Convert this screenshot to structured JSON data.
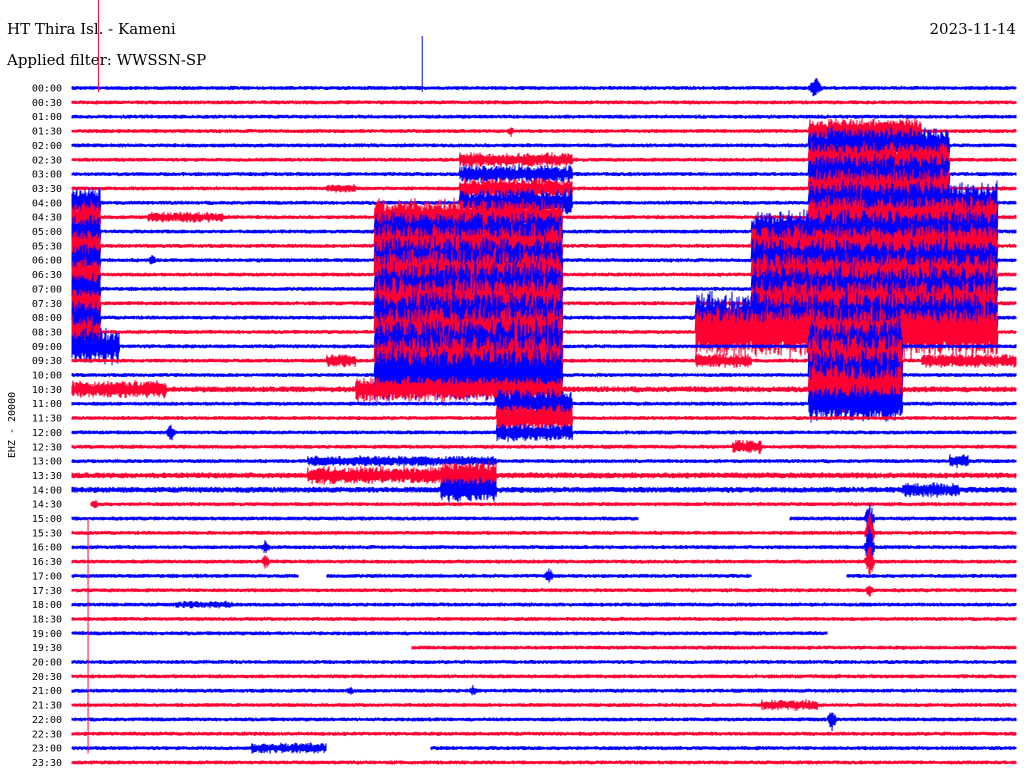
{
  "header": {
    "station": "HT Thira Isl. - Kameni",
    "date": "2023-11-14",
    "filter_prefix": "Applied filter:",
    "filter_name": "WWSSN-SP"
  },
  "chart_data": {
    "type": "line",
    "title": "HT Thira Isl. - Kameni",
    "subtitle": "Applied filter: WWSSN-SP",
    "ylabel": "EHZ - 20000",
    "xlabel": "",
    "row_colors": [
      "#0000ff",
      "#ff0033"
    ],
    "grid": false,
    "legend": "none",
    "rows": [
      {
        "label": "00:00",
        "base": 2,
        "bursts": [
          [
            0.78,
            0.015,
            12
          ]
        ]
      },
      {
        "label": "00:30",
        "base": 2,
        "bursts": []
      },
      {
        "label": "01:00",
        "base": 2,
        "bursts": []
      },
      {
        "label": "01:30",
        "base": 2,
        "bursts": [
          [
            0.46,
            0.01,
            6
          ],
          [
            0.78,
            0.12,
            14
          ],
          [
            0.86,
            0.02,
            14
          ]
        ]
      },
      {
        "label": "02:00",
        "base": 2,
        "bursts": [
          [
            0.78,
            0.15,
            20
          ]
        ]
      },
      {
        "label": "02:30",
        "base": 2,
        "bursts": [
          [
            0.41,
            0.12,
            8
          ],
          [
            0.78,
            0.15,
            20
          ]
        ]
      },
      {
        "label": "03:00",
        "base": 2,
        "bursts": [
          [
            0.41,
            0.12,
            10
          ],
          [
            0.78,
            0.15,
            22
          ]
        ]
      },
      {
        "label": "03:30",
        "base": 2,
        "bursts": [
          [
            0.41,
            0.12,
            12
          ],
          [
            0.27,
            0.03,
            5
          ],
          [
            0.78,
            0.15,
            22
          ]
        ]
      },
      {
        "label": "04:00",
        "base": 2,
        "bursts": [
          [
            0.0,
            0.03,
            18
          ],
          [
            0.41,
            0.12,
            16
          ],
          [
            0.78,
            0.2,
            24
          ]
        ]
      },
      {
        "label": "04:30",
        "base": 2,
        "bursts": [
          [
            0.0,
            0.03,
            18
          ],
          [
            0.08,
            0.08,
            6
          ],
          [
            0.32,
            0.2,
            20
          ],
          [
            0.78,
            0.2,
            24
          ]
        ]
      },
      {
        "label": "05:00",
        "base": 2,
        "bursts": [
          [
            0.0,
            0.03,
            18
          ],
          [
            0.32,
            0.2,
            22
          ],
          [
            0.72,
            0.26,
            24
          ]
        ]
      },
      {
        "label": "05:30",
        "base": 2,
        "bursts": [
          [
            0.0,
            0.03,
            18
          ],
          [
            0.32,
            0.2,
            24
          ],
          [
            0.72,
            0.26,
            24
          ]
        ]
      },
      {
        "label": "06:00",
        "base": 2,
        "bursts": [
          [
            0.0,
            0.03,
            18
          ],
          [
            0.08,
            0.01,
            6
          ],
          [
            0.32,
            0.2,
            26
          ],
          [
            0.72,
            0.26,
            24
          ]
        ]
      },
      {
        "label": "06:30",
        "base": 2,
        "bursts": [
          [
            0.0,
            0.03,
            18
          ],
          [
            0.32,
            0.2,
            28
          ],
          [
            0.72,
            0.26,
            24
          ]
        ]
      },
      {
        "label": "07:00",
        "base": 2,
        "bursts": [
          [
            0.0,
            0.03,
            18
          ],
          [
            0.32,
            0.2,
            30
          ],
          [
            0.72,
            0.26,
            26
          ]
        ]
      },
      {
        "label": "07:30",
        "base": 2,
        "bursts": [
          [
            0.0,
            0.03,
            18
          ],
          [
            0.32,
            0.2,
            30
          ],
          [
            0.72,
            0.26,
            26
          ]
        ]
      },
      {
        "label": "08:00",
        "base": 2,
        "bursts": [
          [
            0.0,
            0.03,
            18
          ],
          [
            0.32,
            0.2,
            30
          ],
          [
            0.66,
            0.32,
            28
          ]
        ]
      },
      {
        "label": "08:30",
        "base": 2,
        "bursts": [
          [
            0.0,
            0.03,
            18
          ],
          [
            0.32,
            0.2,
            30
          ],
          [
            0.66,
            0.32,
            28
          ]
        ]
      },
      {
        "label": "09:00",
        "base": 2,
        "bursts": [
          [
            0.0,
            0.05,
            20
          ],
          [
            0.32,
            0.2,
            30
          ],
          [
            0.78,
            0.1,
            30
          ]
        ]
      },
      {
        "label": "09:30",
        "base": 2,
        "bursts": [
          [
            0.27,
            0.03,
            8
          ],
          [
            0.32,
            0.2,
            30
          ],
          [
            0.66,
            0.06,
            8
          ],
          [
            0.78,
            0.1,
            30
          ],
          [
            0.9,
            0.1,
            8
          ]
        ]
      },
      {
        "label": "10:00",
        "base": 2,
        "bursts": [
          [
            0.32,
            0.2,
            30
          ],
          [
            0.78,
            0.1,
            30
          ]
        ]
      },
      {
        "label": "10:30",
        "base": 3,
        "bursts": [
          [
            0.0,
            0.1,
            10
          ],
          [
            0.3,
            0.22,
            14
          ],
          [
            0.78,
            0.1,
            30
          ]
        ]
      },
      {
        "label": "11:00",
        "base": 2,
        "bursts": [
          [
            0.45,
            0.08,
            16
          ],
          [
            0.78,
            0.1,
            20
          ]
        ]
      },
      {
        "label": "11:30",
        "base": 2,
        "bursts": [
          [
            0.45,
            0.08,
            16
          ]
        ]
      },
      {
        "label": "12:00",
        "base": 2,
        "bursts": [
          [
            0.1,
            0.01,
            10
          ],
          [
            0.45,
            0.08,
            10
          ]
        ]
      },
      {
        "label": "12:30",
        "base": 2,
        "bursts": [
          [
            0.7,
            0.03,
            8
          ]
        ]
      },
      {
        "label": "13:00",
        "base": 2,
        "bursts": [
          [
            0.25,
            0.2,
            6
          ],
          [
            0.93,
            0.02,
            8
          ]
        ]
      },
      {
        "label": "13:30",
        "base": 3,
        "bursts": [
          [
            0.25,
            0.2,
            10
          ],
          [
            0.39,
            0.06,
            16
          ]
        ]
      },
      {
        "label": "14:00",
        "base": 3,
        "bursts": [
          [
            0.39,
            0.06,
            14
          ],
          [
            0.88,
            0.06,
            8
          ]
        ]
      },
      {
        "label": "14:30",
        "base": 2,
        "bursts": [
          [
            0.02,
            0.01,
            6
          ]
        ]
      },
      {
        "label": "15:00",
        "base": 2,
        "bursts": [
          [
            0.74,
            0.02,
            14
          ],
          [
            0.84,
            0.01,
            18
          ]
        ]
      },
      {
        "label": "15:30",
        "base": 2,
        "bursts": [
          [
            0.84,
            0.01,
            22
          ]
        ]
      },
      {
        "label": "16:00",
        "base": 2,
        "bursts": [
          [
            0.2,
            0.01,
            8
          ],
          [
            0.84,
            0.01,
            26
          ]
        ]
      },
      {
        "label": "16:30",
        "base": 2,
        "bursts": [
          [
            0.2,
            0.01,
            8
          ],
          [
            0.84,
            0.01,
            18
          ]
        ]
      },
      {
        "label": "17:00",
        "base": 2,
        "bursts": [
          [
            0.5,
            0.01,
            10
          ]
        ]
      },
      {
        "label": "17:30",
        "base": 2,
        "bursts": [
          [
            0.84,
            0.01,
            8
          ]
        ]
      },
      {
        "label": "18:00",
        "base": 2,
        "bursts": [
          [
            0.11,
            0.06,
            4
          ]
        ]
      },
      {
        "label": "18:30",
        "base": 2,
        "bursts": []
      },
      {
        "label": "19:00",
        "base": 2,
        "bursts": []
      },
      {
        "label": "19:30",
        "base": 2,
        "bursts": []
      },
      {
        "label": "20:00",
        "base": 2,
        "bursts": []
      },
      {
        "label": "20:30",
        "base": 2,
        "bursts": []
      },
      {
        "label": "21:00",
        "base": 2,
        "bursts": [
          [
            0.29,
            0.01,
            5
          ],
          [
            0.42,
            0.01,
            6
          ]
        ]
      },
      {
        "label": "21:30",
        "base": 2,
        "bursts": [
          [
            0.73,
            0.06,
            6
          ]
        ]
      },
      {
        "label": "22:00",
        "base": 2,
        "bursts": [
          [
            0.8,
            0.01,
            12
          ]
        ]
      },
      {
        "label": "22:30",
        "base": 2,
        "bursts": []
      },
      {
        "label": "23:00",
        "base": 2,
        "bursts": [
          [
            0.19,
            0.08,
            6
          ]
        ]
      },
      {
        "label": "23:30",
        "base": 2,
        "bursts": []
      }
    ],
    "gaps": [
      {
        "row": 29,
        "start": 0.0,
        "end": 0.02
      },
      {
        "row": 30,
        "start": 0.6,
        "end": 0.76
      },
      {
        "row": 34,
        "start": 0.24,
        "end": 0.27
      },
      {
        "row": 34,
        "start": 0.72,
        "end": 0.82
      },
      {
        "row": 38,
        "start": 0.8,
        "end": 1.0
      },
      {
        "row": 39,
        "start": 0.0,
        "end": 0.36
      },
      {
        "row": 46,
        "start": 0.27,
        "end": 0.38
      }
    ]
  }
}
